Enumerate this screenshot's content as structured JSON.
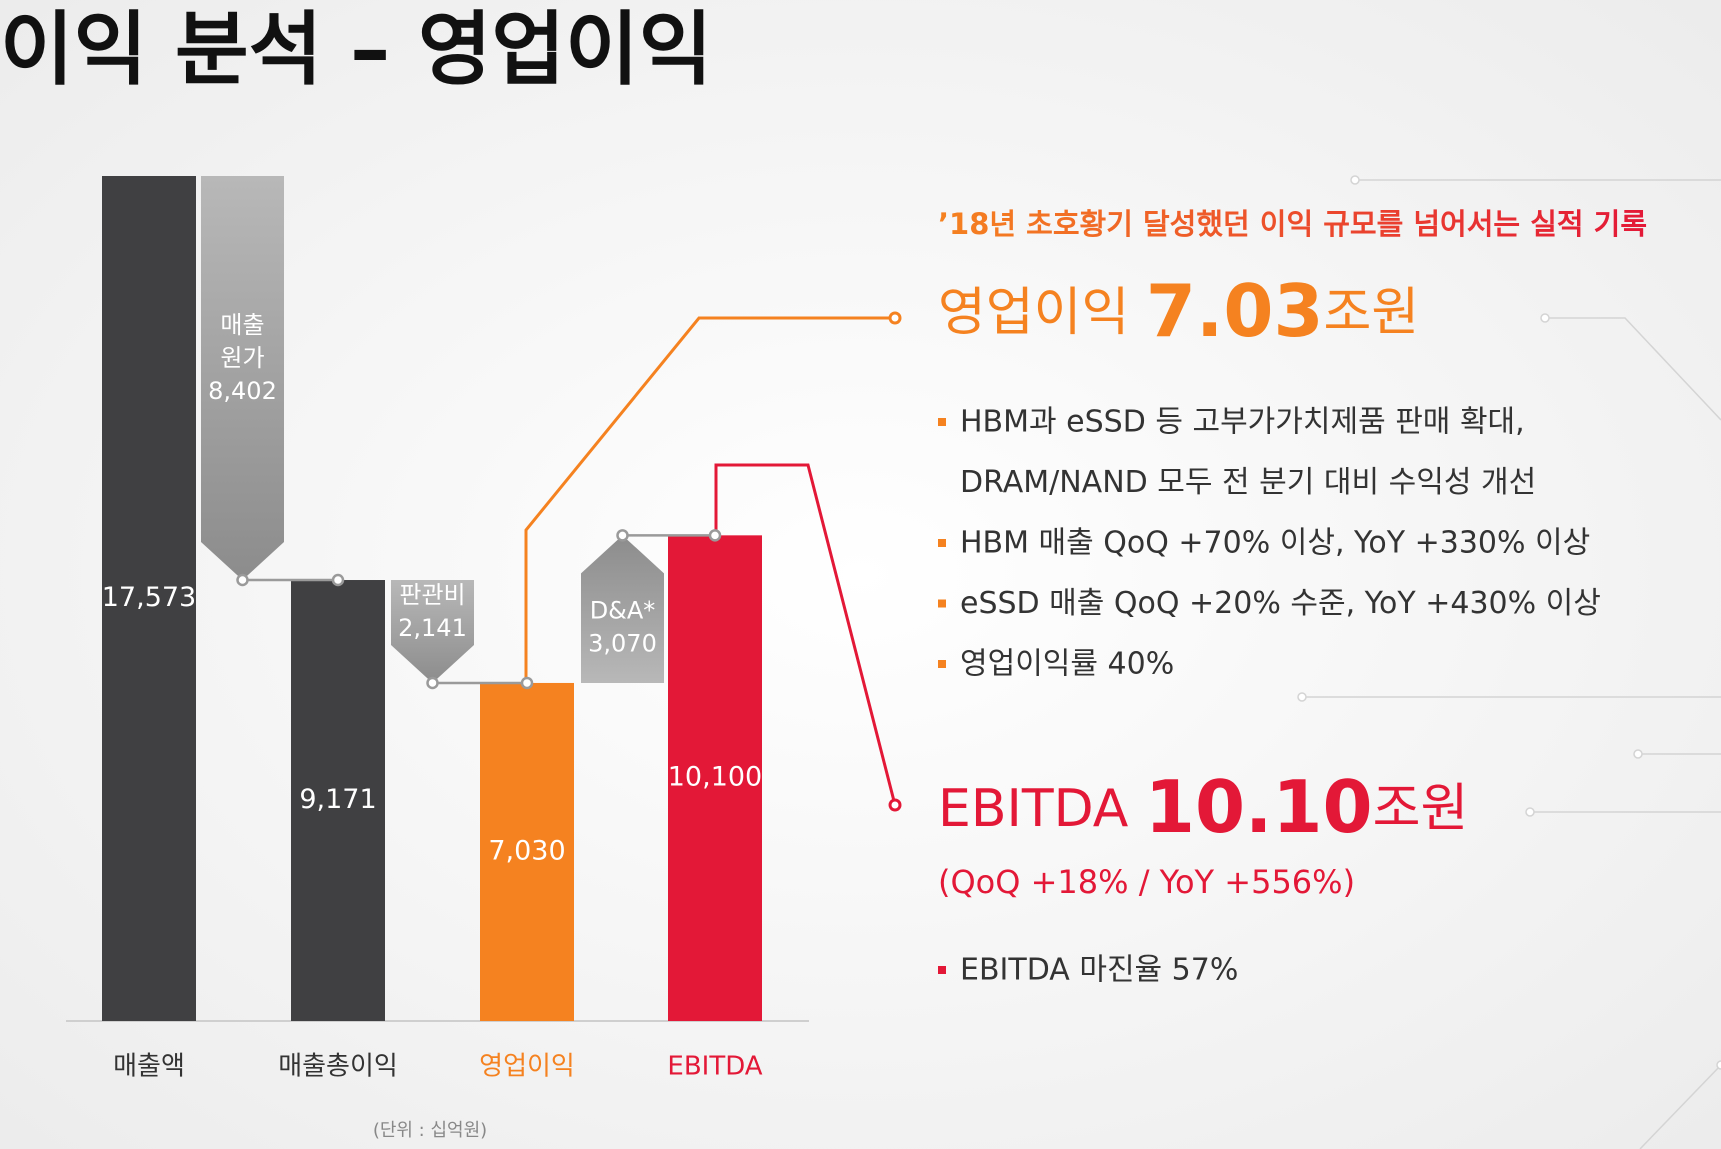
{
  "title": "이익 분석 – 영업이익",
  "chart_data": {
    "type": "waterfall",
    "categories": [
      "매출액",
      "매출총이익",
      "영업이익",
      "EBITDA"
    ],
    "values": [
      17573,
      9171,
      7030,
      10100
    ],
    "value_labels": [
      "17,573",
      "9,171",
      "7,030",
      "10,100"
    ],
    "colors": [
      "#404042",
      "#404042",
      "#f58220",
      "#e31837"
    ],
    "label_colors": [
      "#333333",
      "#333333",
      "#f58220",
      "#e31837"
    ],
    "steps": [
      {
        "name": [
          "매출",
          "원가"
        ],
        "value": 8402,
        "value_label": "8,402",
        "direction": "decrease"
      },
      {
        "name": [
          "판관비"
        ],
        "value": 2141,
        "value_label": "2,141",
        "direction": "decrease"
      },
      {
        "name": [
          "D&A*"
        ],
        "value": 3070,
        "value_label": "3,070",
        "direction": "increase"
      }
    ],
    "note": "(단위 : 십억원)"
  },
  "panel": {
    "headline": "’18년 초호황기 달성했던 이익 규모를 넘어서는 실적 기록",
    "op_label": "영업이익 ",
    "op_value": "7.03",
    "op_unit": "조원",
    "op_bullets": [
      [
        "HBM과 eSSD 등 고부가가치제품 판매 확대,",
        "DRAM/NAND 모두 전 분기 대비 수익성 개선"
      ],
      [
        "HBM 매출 QoQ +70% 이상, YoY +330% 이상"
      ],
      [
        "eSSD 매출 QoQ +20% 수준, YoY +430% 이상"
      ],
      [
        "영업이익률 40%"
      ]
    ],
    "ebitda_label": "EBITDA ",
    "ebitda_value": "10.10",
    "ebitda_unit": "조원",
    "ebitda_growth": "(QoQ +18% / YoY +556%)",
    "ebitda_bullets": [
      [
        "EBITDA 마진율 57%"
      ]
    ]
  }
}
